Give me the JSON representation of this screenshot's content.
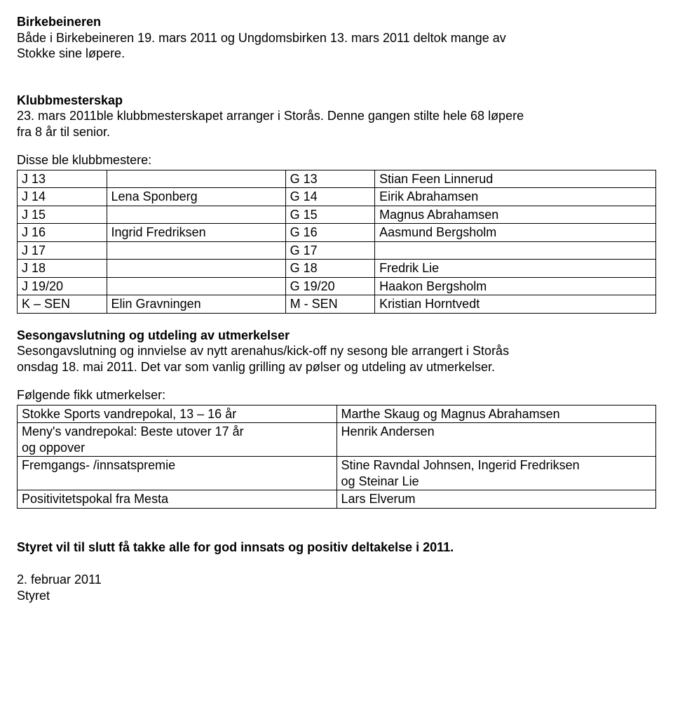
{
  "birkebeineren": {
    "heading": "Birkebeineren",
    "line1": "Både i Birkebeineren 19. mars 2011 og Ungdomsbirken 13. mars 2011 deltok mange av",
    "line2": "Stokke sine løpere."
  },
  "klubbmesterskap": {
    "heading": "Klubbmesterskap",
    "line1": "23. mars 2011ble klubbmesterskapet arranger i Storås. Denne gangen stilte hele 68 løpere",
    "line2": "fra 8 år til senior.",
    "lead": "Disse ble klubbmestere:",
    "rows": [
      {
        "a": "J 13",
        "b": "",
        "c": "G 13",
        "d": "Stian Feen Linnerud"
      },
      {
        "a": "J 14",
        "b": "Lena Sponberg",
        "c": "G 14",
        "d": "Eirik Abrahamsen"
      },
      {
        "a": "J 15",
        "b": "",
        "c": "G 15",
        "d": "Magnus Abrahamsen"
      },
      {
        "a": "J 16",
        "b": "Ingrid Fredriksen",
        "c": "G 16",
        "d": "Aasmund Bergsholm"
      },
      {
        "a": "J 17",
        "b": "",
        "c": "G 17",
        "d": ""
      },
      {
        "a": "J 18",
        "b": "",
        "c": "G 18",
        "d": "Fredrik Lie"
      },
      {
        "a": "J 19/20",
        "b": "",
        "c": "G 19/20",
        "d": "Haakon Bergsholm"
      },
      {
        "a": "K – SEN",
        "b": "Elin Gravningen",
        "c": "M - SEN",
        "d": "Kristian Horntvedt"
      }
    ]
  },
  "sesong": {
    "heading": "Sesongavslutning og utdeling av utmerkelser",
    "line1": "Sesongavslutning og innvielse av nytt arenahus/kick-off ny sesong ble arrangert i Storås",
    "line2": "onsdag 18. mai 2011. Det var som vanlig grilling av pølser og utdeling av utmerkelser.",
    "lead": "Følgende fikk utmerkelser:",
    "rows": [
      {
        "l1": "Stokke Sports vandrepokal, 13 – 16 år",
        "r1": "Marthe Skaug og Magnus Abrahamsen",
        "l2": "",
        "r2": ""
      },
      {
        "l1": "Meny's vandrepokal: Beste utover 17 år",
        "l2": "og oppover",
        "r1": "Henrik Andersen",
        "r2": ""
      },
      {
        "l1": "Fremgangs- /innsatspremie",
        "l2": "",
        "r1": "Stine Ravndal Johnsen, Ingerid Fredriksen",
        "r2": "og Steinar Lie"
      },
      {
        "l1": "Positivitetspokal fra Mesta",
        "l2": "",
        "r1": "Lars Elverum",
        "r2": ""
      }
    ]
  },
  "closing": {
    "line": "Styret vil til slutt få takke alle for god innsats og positiv deltakelse i 2011.",
    "date": "2. februar 2011",
    "signer": "Styret"
  }
}
